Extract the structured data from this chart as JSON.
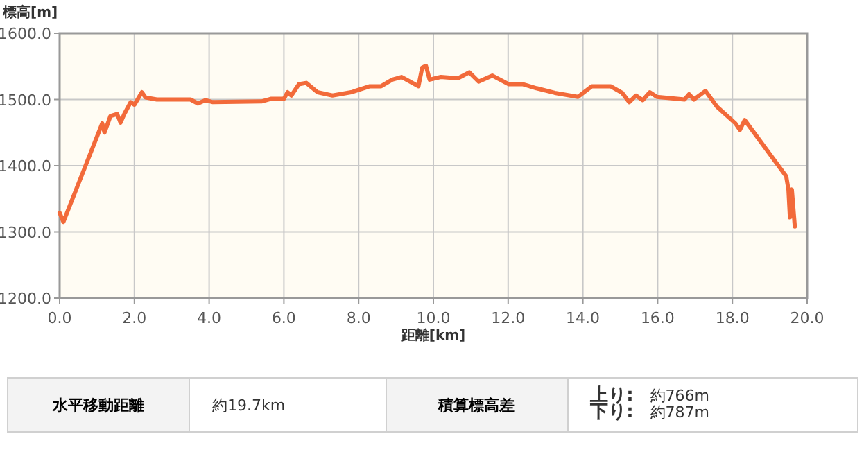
{
  "chart_data": {
    "type": "line",
    "xlabel": "距離[km]",
    "ylabel": "標高[m]",
    "xlim": [
      0,
      20
    ],
    "ylim": [
      1200,
      1600
    ],
    "xticks": [
      {
        "value": 0,
        "label": "0.0"
      },
      {
        "value": 2,
        "label": "2.0"
      },
      {
        "value": 4,
        "label": "4.0"
      },
      {
        "value": 6,
        "label": "6.0"
      },
      {
        "value": 8,
        "label": "8.0"
      },
      {
        "value": 10,
        "label": "10.0"
      },
      {
        "value": 12,
        "label": "12.0"
      },
      {
        "value": 14,
        "label": "14.0"
      },
      {
        "value": 16,
        "label": "16.0"
      },
      {
        "value": 18,
        "label": "18.0"
      },
      {
        "value": 20,
        "label": "20.0"
      }
    ],
    "yticks": [
      {
        "value": 1200,
        "label": "1200.0"
      },
      {
        "value": 1300,
        "label": "1300.0"
      },
      {
        "value": 1400,
        "label": "1400.0"
      },
      {
        "value": 1500,
        "label": "1500.0"
      },
      {
        "value": 1600,
        "label": "1600.0"
      }
    ],
    "grid": true,
    "marker": "none",
    "line_style": "solid",
    "series": [
      {
        "color": "#f26a3a",
        "x": [
          0,
          0.1,
          1.14,
          1.2,
          1.36,
          1.54,
          1.63,
          1.73,
          1.9,
          2.0,
          2.2,
          2.3,
          2.6,
          3.5,
          3.7,
          3.9,
          4.1,
          5.4,
          5.65,
          6.0,
          6.1,
          6.2,
          6.4,
          6.6,
          6.9,
          7.3,
          7.8,
          8.3,
          8.6,
          8.9,
          9.15,
          9.6,
          9.7,
          9.8,
          9.9,
          10.2,
          10.66,
          10.96,
          11.21,
          11.58,
          12.02,
          12.4,
          12.76,
          13.25,
          13.87,
          14.24,
          14.74,
          15.05,
          15.24,
          15.42,
          15.6,
          15.79,
          15.98,
          16.72,
          16.84,
          16.97,
          17.28,
          17.59,
          18.08,
          18.2,
          18.33,
          19.44,
          19.5,
          19.54,
          19.59,
          19.67
        ],
        "values": [
          1329,
          1315,
          1464,
          1450,
          1475,
          1478,
          1465,
          1478,
          1496,
          1492,
          1511,
          1503,
          1500,
          1500,
          1494,
          1499,
          1496,
          1497,
          1501,
          1501,
          1511,
          1506,
          1523,
          1525,
          1511,
          1506,
          1511,
          1520,
          1520,
          1530,
          1534,
          1520,
          1548,
          1551,
          1530,
          1534,
          1532,
          1541,
          1527,
          1536,
          1523,
          1523,
          1517,
          1510,
          1504,
          1520,
          1520,
          1510,
          1496,
          1506,
          1499,
          1511,
          1504,
          1500,
          1508,
          1500,
          1513,
          1489,
          1464,
          1454,
          1469,
          1384,
          1364,
          1322,
          1364,
          1308
        ]
      }
    ],
    "annotations": [
      "水平移動距離",
      "約19.7km",
      "積算標高差",
      "上り:",
      "約766m",
      "下り:",
      "約787m"
    ]
  }
}
